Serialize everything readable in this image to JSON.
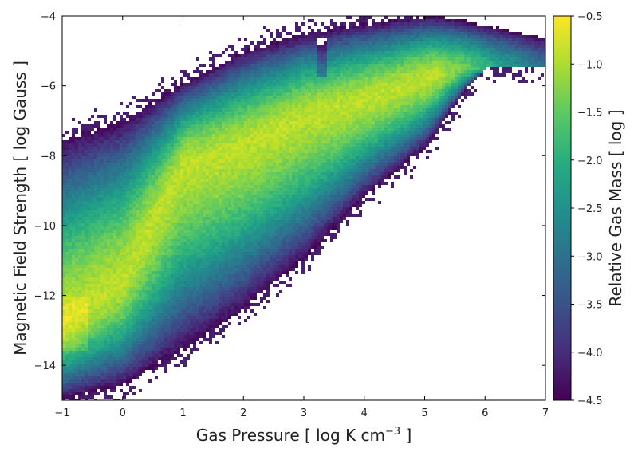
{
  "chart_data": {
    "type": "heatmap",
    "title": "",
    "xlabel_main": "Gas Pressure [ log K cm",
    "xlabel_sup": "−3",
    "xlabel_end": " ]",
    "ylabel": "Magnetic Field Strength [ log Gauss ]",
    "colorbar_label": "Relative Gas Mass [ log ]",
    "xlim": [
      -1,
      7
    ],
    "ylim": [
      -15,
      -4
    ],
    "clim": [
      -4.5,
      -0.5
    ],
    "colormap": "viridis",
    "x_ticks": [
      -1,
      0,
      1,
      2,
      3,
      4,
      5,
      6,
      7
    ],
    "x_tick_labels": [
      "−1",
      "0",
      "1",
      "2",
      "3",
      "4",
      "5",
      "6",
      "7"
    ],
    "y_ticks": [
      -14,
      -12,
      -10,
      -8,
      -6,
      -4
    ],
    "y_tick_labels": [
      "−14",
      "−12",
      "−10",
      "−8",
      "−6",
      "−4"
    ],
    "colorbar_ticks": [
      -4.5,
      -4.0,
      -3.5,
      -3.0,
      -2.5,
      -2.0,
      -1.5,
      -1.0,
      -0.5
    ],
    "colorbar_tick_labels": [
      "−4.5",
      "−4.0",
      "−3.5",
      "−3.0",
      "−2.5",
      "−2.0",
      "−1.5",
      "−1.0",
      "−0.5"
    ],
    "distribution": {
      "ridge": [
        [
          -1,
          -12.8
        ],
        [
          0,
          -11.6
        ],
        [
          1,
          -8.3
        ],
        [
          2,
          -7.7
        ],
        [
          3,
          -6.9
        ],
        [
          4,
          -6.4
        ],
        [
          5,
          -5.8
        ],
        [
          5.6,
          -5.5
        ]
      ],
      "lower_edge": [
        [
          -1,
          -15.0
        ],
        [
          0,
          -14.6
        ],
        [
          1,
          -13.6
        ],
        [
          2,
          -12.4
        ],
        [
          3,
          -11.0
        ],
        [
          4,
          -9.2
        ],
        [
          5,
          -7.8
        ],
        [
          6,
          -5.5
        ]
      ],
      "upper_edge": [
        [
          -1,
          -7.5
        ],
        [
          0,
          -7.0
        ],
        [
          1,
          -5.9
        ],
        [
          2,
          -5.0
        ],
        [
          3,
          -4.5
        ],
        [
          4,
          -4.2
        ],
        [
          5,
          -4.0
        ],
        [
          6,
          -4.0
        ]
      ]
    }
  }
}
